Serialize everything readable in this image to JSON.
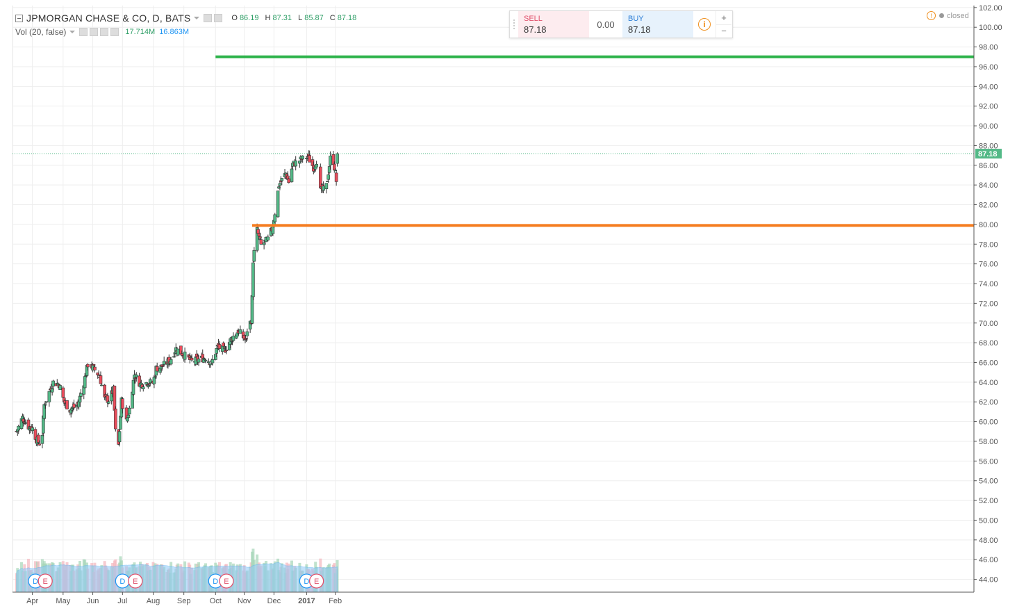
{
  "legend": {
    "symbol": "JPMORGAN CHASE & CO, D, BATS",
    "open_label": "O",
    "open": "86.19",
    "high_label": "H",
    "high": "87.31",
    "low_label": "L",
    "low": "85.87",
    "close_label": "C",
    "close": "87.18",
    "volume_indicator": "Vol (20, false)",
    "volume_value": "17.714M",
    "volume_ma": "16.863M"
  },
  "trade_panel": {
    "sell_label": "SELL",
    "sell_price": "87.18",
    "spread": "0.00",
    "buy_label": "BUY",
    "buy_price": "87.18",
    "plus": "+",
    "minus": "−"
  },
  "market_status": "closed",
  "price_marker": "87.18",
  "colors": {
    "up": "#53b987",
    "down": "#eb4d5c",
    "support_line": "#f57c1f",
    "target_line": "#2db34a",
    "volume_ma_fill": "#90caf9",
    "last_price": "#53b987"
  },
  "chart_data": {
    "type": "candlestick",
    "yticks": [
      "44.00",
      "46.00",
      "48.00",
      "50.00",
      "52.00",
      "54.00",
      "56.00",
      "58.00",
      "60.00",
      "62.00",
      "64.00",
      "66.00",
      "68.00",
      "70.00",
      "72.00",
      "74.00",
      "76.00",
      "78.00",
      "80.00",
      "82.00",
      "84.00",
      "86.00",
      "88.00",
      "90.00",
      "92.00",
      "94.00",
      "96.00",
      "98.00",
      "100.00",
      "102.00"
    ],
    "xticks": [
      "Apr",
      "May",
      "Jun",
      "Jul",
      "Aug",
      "Sep",
      "Oct",
      "Nov",
      "Dec",
      "2017",
      "Jan",
      "Feb"
    ],
    "ylim": [
      42.7,
      102.2
    ],
    "grid": true,
    "horizontal_lines": [
      {
        "name": "support",
        "price": 79.9,
        "from": "2016-11-09",
        "color": "#f57c1f"
      },
      {
        "name": "target",
        "price": 97.0,
        "from": "2016-10-03",
        "color": "#2db34a"
      }
    ],
    "events": [
      {
        "type": "D",
        "date": "2016-04-04"
      },
      {
        "type": "E",
        "date": "2016-04-14"
      },
      {
        "type": "D",
        "date": "2016-07-01"
      },
      {
        "type": "E",
        "date": "2016-07-14"
      },
      {
        "type": "D",
        "date": "2016-10-03"
      },
      {
        "type": "E",
        "date": "2016-10-14"
      },
      {
        "type": "D",
        "date": "2017-01-03"
      },
      {
        "type": "E",
        "date": "2017-01-13"
      }
    ],
    "control_points": [
      [
        "2016-03-16",
        59.0
      ],
      [
        "2016-03-22",
        60.4
      ],
      [
        "2016-03-28",
        59.5
      ],
      [
        "2016-04-01",
        59.3
      ],
      [
        "2016-04-05",
        58.2
      ],
      [
        "2016-04-08",
        57.8
      ],
      [
        "2016-04-11",
        58.8
      ],
      [
        "2016-04-13",
        61.7
      ],
      [
        "2016-04-18",
        63.0
      ],
      [
        "2016-04-22",
        64.0
      ],
      [
        "2016-04-28",
        63.8
      ],
      [
        "2016-05-03",
        62.0
      ],
      [
        "2016-05-09",
        61.2
      ],
      [
        "2016-05-17",
        61.7
      ],
      [
        "2016-05-23",
        64.0
      ],
      [
        "2016-05-27",
        65.8
      ],
      [
        "2016-06-01",
        65.5
      ],
      [
        "2016-06-08",
        64.6
      ],
      [
        "2016-06-13",
        62.3
      ],
      [
        "2016-06-17",
        62.2
      ],
      [
        "2016-06-22",
        63.2
      ],
      [
        "2016-06-24",
        59.0
      ],
      [
        "2016-06-27",
        57.6
      ],
      [
        "2016-06-30",
        62.1
      ],
      [
        "2016-07-05",
        60.0
      ],
      [
        "2016-07-08",
        61.3
      ],
      [
        "2016-07-13",
        64.8
      ],
      [
        "2016-07-19",
        63.8
      ],
      [
        "2016-07-27",
        64.0
      ],
      [
        "2016-08-01",
        63.9
      ],
      [
        "2016-08-04",
        65.4
      ],
      [
        "2016-08-10",
        65.6
      ],
      [
        "2016-08-18",
        66.2
      ],
      [
        "2016-08-24",
        67.4
      ],
      [
        "2016-09-01",
        66.8
      ],
      [
        "2016-09-09",
        66.1
      ],
      [
        "2016-09-16",
        66.3
      ],
      [
        "2016-09-23",
        66.5
      ],
      [
        "2016-09-29",
        65.9
      ],
      [
        "2016-10-05",
        67.6
      ],
      [
        "2016-10-12",
        67.2
      ],
      [
        "2016-10-19",
        68.4
      ],
      [
        "2016-10-26",
        69.2
      ],
      [
        "2016-11-03",
        68.2
      ],
      [
        "2016-11-04",
        69.3
      ],
      [
        "2016-11-08",
        70.3
      ],
      [
        "2016-11-09",
        72.5
      ],
      [
        "2016-11-10",
        76.4
      ],
      [
        "2016-11-14",
        79.4
      ],
      [
        "2016-11-18",
        77.9
      ],
      [
        "2016-11-25",
        78.5
      ],
      [
        "2016-11-29",
        79.5
      ],
      [
        "2016-12-02",
        81.2
      ],
      [
        "2016-12-06",
        84.0
      ],
      [
        "2016-12-13",
        85.2
      ],
      [
        "2016-12-16",
        84.3
      ],
      [
        "2016-12-20",
        86.1
      ],
      [
        "2016-12-29",
        86.6
      ],
      [
        "2017-01-04",
        86.9
      ],
      [
        "2017-01-10",
        85.8
      ],
      [
        "2017-01-13",
        86.5
      ],
      [
        "2017-01-17",
        83.4
      ],
      [
        "2017-01-20",
        83.5
      ],
      [
        "2017-01-23",
        83.9
      ],
      [
        "2017-01-27",
        86.7
      ],
      [
        "2017-01-30",
        86.4
      ],
      [
        "2017-02-01",
        85.2
      ],
      [
        "2017-02-02",
        84.4
      ],
      [
        "2017-02-03",
        87.18
      ]
    ],
    "last_bar": {
      "open": 86.19,
      "high": 87.31,
      "low": 85.87,
      "close": 87.18
    },
    "volume_m": {
      "last": 17.714,
      "ma20": 16.863
    }
  }
}
